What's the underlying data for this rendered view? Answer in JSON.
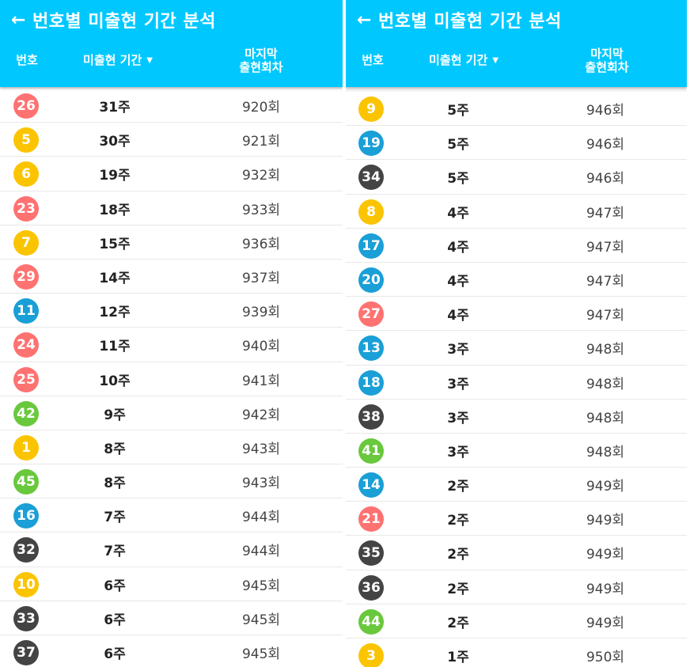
{
  "colors": {
    "header": "#00c8ff",
    "yellow": "#fbc400",
    "blue": "#1a9fd6",
    "red": "#ff7272",
    "gray": "#444444",
    "green": "#69c83c"
  },
  "header": {
    "back_icon": "←",
    "title": "번호별 미출현 기간 분석",
    "col_number": "번호",
    "col_period": "미출현 기간",
    "sort_icon": "▼",
    "col_last_line1": "마지막",
    "col_last_line2": "출현회차"
  },
  "left": {
    "rows": [
      {
        "num": "26",
        "period": "31주",
        "last": "920회",
        "color": "red"
      },
      {
        "num": "5",
        "period": "30주",
        "last": "921회",
        "color": "yellow"
      },
      {
        "num": "6",
        "period": "19주",
        "last": "932회",
        "color": "yellow"
      },
      {
        "num": "23",
        "period": "18주",
        "last": "933회",
        "color": "red"
      },
      {
        "num": "7",
        "period": "15주",
        "last": "936회",
        "color": "yellow"
      },
      {
        "num": "29",
        "period": "14주",
        "last": "937회",
        "color": "red"
      },
      {
        "num": "11",
        "period": "12주",
        "last": "939회",
        "color": "blue"
      },
      {
        "num": "24",
        "period": "11주",
        "last": "940회",
        "color": "red"
      },
      {
        "num": "25",
        "period": "10주",
        "last": "941회",
        "color": "red"
      },
      {
        "num": "42",
        "period": "9주",
        "last": "942회",
        "color": "green"
      },
      {
        "num": "1",
        "period": "8주",
        "last": "943회",
        "color": "yellow"
      },
      {
        "num": "45",
        "period": "8주",
        "last": "943회",
        "color": "green"
      },
      {
        "num": "16",
        "period": "7주",
        "last": "944회",
        "color": "blue"
      },
      {
        "num": "32",
        "period": "7주",
        "last": "944회",
        "color": "gray"
      },
      {
        "num": "10",
        "period": "6주",
        "last": "945회",
        "color": "yellow"
      },
      {
        "num": "33",
        "period": "6주",
        "last": "945회",
        "color": "gray"
      },
      {
        "num": "37",
        "period": "6주",
        "last": "945회",
        "color": "gray"
      }
    ]
  },
  "right": {
    "rows": [
      {
        "num": "9",
        "period": "5주",
        "last": "946회",
        "color": "yellow"
      },
      {
        "num": "19",
        "period": "5주",
        "last": "946회",
        "color": "blue"
      },
      {
        "num": "34",
        "period": "5주",
        "last": "946회",
        "color": "gray"
      },
      {
        "num": "8",
        "period": "4주",
        "last": "947회",
        "color": "yellow"
      },
      {
        "num": "17",
        "period": "4주",
        "last": "947회",
        "color": "blue"
      },
      {
        "num": "20",
        "period": "4주",
        "last": "947회",
        "color": "blue"
      },
      {
        "num": "27",
        "period": "4주",
        "last": "947회",
        "color": "red"
      },
      {
        "num": "13",
        "period": "3주",
        "last": "948회",
        "color": "blue"
      },
      {
        "num": "18",
        "period": "3주",
        "last": "948회",
        "color": "blue"
      },
      {
        "num": "38",
        "period": "3주",
        "last": "948회",
        "color": "gray"
      },
      {
        "num": "41",
        "period": "3주",
        "last": "948회",
        "color": "green"
      },
      {
        "num": "14",
        "period": "2주",
        "last": "949회",
        "color": "blue"
      },
      {
        "num": "21",
        "period": "2주",
        "last": "949회",
        "color": "red"
      },
      {
        "num": "35",
        "period": "2주",
        "last": "949회",
        "color": "gray"
      },
      {
        "num": "36",
        "period": "2주",
        "last": "949회",
        "color": "gray"
      },
      {
        "num": "44",
        "period": "2주",
        "last": "949회",
        "color": "green"
      },
      {
        "num": "3",
        "period": "1주",
        "last": "950회",
        "color": "yellow"
      }
    ]
  }
}
